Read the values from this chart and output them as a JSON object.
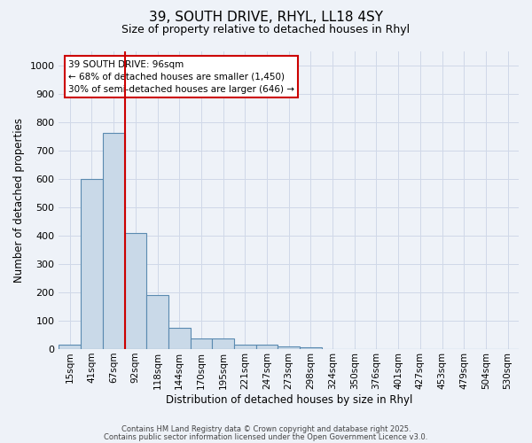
{
  "title1": "39, SOUTH DRIVE, RHYL, LL18 4SY",
  "title2": "Size of property relative to detached houses in Rhyl",
  "xlabel": "Distribution of detached houses by size in Rhyl",
  "ylabel": "Number of detached properties",
  "bin_labels": [
    "15sqm",
    "41sqm",
    "67sqm",
    "92sqm",
    "118sqm",
    "144sqm",
    "170sqm",
    "195sqm",
    "221sqm",
    "247sqm",
    "273sqm",
    "298sqm",
    "324sqm",
    "350sqm",
    "376sqm",
    "401sqm",
    "427sqm",
    "453sqm",
    "479sqm",
    "504sqm",
    "530sqm"
  ],
  "bar_values": [
    15,
    600,
    760,
    410,
    190,
    75,
    38,
    38,
    15,
    15,
    8,
    5,
    0,
    0,
    0,
    0,
    0,
    0,
    0,
    0,
    0
  ],
  "bar_color": "#c9d9e8",
  "bar_edge_color": "#5a8ab0",
  "redline_color": "#cc0000",
  "redline_x": 2.5,
  "grid_color": "#d0d8e8",
  "background_color": "#eef2f8",
  "annotation_text": "39 SOUTH DRIVE: 96sqm\n← 68% of detached houses are smaller (1,450)\n30% of semi-detached houses are larger (646) →",
  "annotation_box_facecolor": "#ffffff",
  "annotation_box_edgecolor": "#cc0000",
  "ylim": [
    0,
    1050
  ],
  "yticks": [
    0,
    100,
    200,
    300,
    400,
    500,
    600,
    700,
    800,
    900,
    1000
  ],
  "footer1": "Contains HM Land Registry data © Crown copyright and database right 2025.",
  "footer2": "Contains public sector information licensed under the Open Government Licence v3.0."
}
